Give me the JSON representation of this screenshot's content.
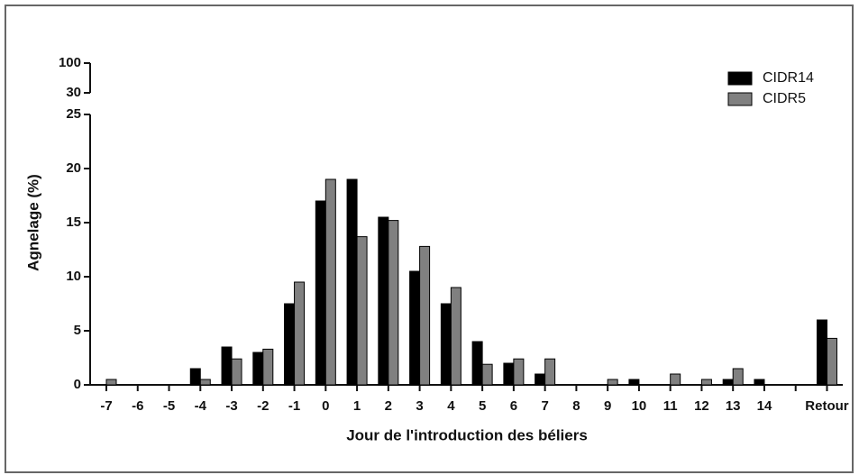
{
  "chart_data": {
    "type": "bar",
    "x_label": "Jour de l'introduction des béliers",
    "y_label": "Agnelage (%)",
    "categories": [
      "-7",
      "-6",
      "-5",
      "-4",
      "-3",
      "-2",
      "-1",
      "0",
      "1",
      "2",
      "3",
      "4",
      "5",
      "6",
      "7",
      "8",
      "9",
      "10",
      "11",
      "12",
      "13",
      "14",
      null,
      "Retour"
    ],
    "series": [
      {
        "name": "CIDR14",
        "color": "#000000",
        "values": [
          0,
          0,
          0,
          1.5,
          3.5,
          3,
          7.5,
          17,
          19,
          15.5,
          10.5,
          7.5,
          4,
          2,
          1,
          0,
          0,
          0.5,
          0,
          0,
          0.5,
          0.5,
          null,
          6
        ]
      },
      {
        "name": "CIDR5",
        "color": "#808080",
        "values": [
          0.5,
          0,
          0,
          0.5,
          2.4,
          3.3,
          9.5,
          19,
          13.7,
          15.2,
          12.8,
          9,
          1.9,
          2.4,
          2.4,
          0,
          0.5,
          0,
          1,
          0.5,
          1.5,
          0,
          null,
          4.3
        ]
      }
    ],
    "ylim": [
      0,
      25
    ],
    "yticks": [
      0,
      5,
      10,
      15,
      20,
      25
    ],
    "upper_ylim": [
      30,
      100
    ],
    "upper_yticks": [
      30,
      100
    ],
    "legend": "upper right",
    "grid": false
  }
}
